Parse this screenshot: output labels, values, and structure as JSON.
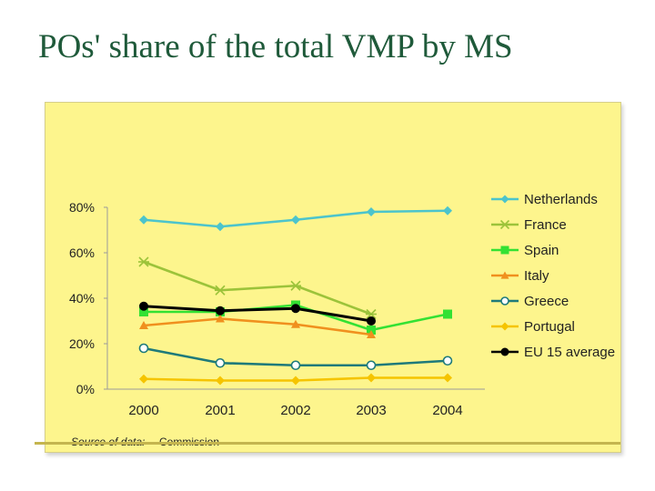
{
  "slide": {
    "title": "POs' share of the total VMP by MS"
  },
  "chart_data": {
    "type": "line",
    "title": "POs' share of the total VMP by MS",
    "categories": [
      "2000",
      "2001",
      "2002",
      "2003",
      "2004"
    ],
    "ylim": [
      0,
      80
    ],
    "yticks": [
      0,
      20,
      40,
      60,
      80
    ],
    "ytick_labels": [
      "0%",
      "20%",
      "40%",
      "60%",
      "80%"
    ],
    "legend_position": "right",
    "series": [
      {
        "name": "Netherlands",
        "color": "#4cc4cc",
        "marker": "diamond",
        "values": [
          74.5,
          71.5,
          74.5,
          78,
          78.5
        ]
      },
      {
        "name": "France",
        "color": "#9cc33a",
        "marker": "star",
        "values": [
          56,
          43.5,
          45.5,
          33,
          null
        ]
      },
      {
        "name": "Spain",
        "color": "#33e133",
        "marker": "square",
        "values": [
          34,
          34,
          37,
          26,
          33
        ]
      },
      {
        "name": "Italy",
        "color": "#f0901e",
        "marker": "triangle",
        "values": [
          28,
          31,
          28.5,
          24,
          null
        ]
      },
      {
        "name": "Greece",
        "color": "#1e7a7a",
        "marker": "circle-open",
        "values": [
          18,
          11.5,
          10.5,
          10.5,
          12.5
        ]
      },
      {
        "name": "Portugal",
        "color": "#f5c400",
        "marker": "diamond",
        "values": [
          4.5,
          3.8,
          3.8,
          5,
          5
        ]
      },
      {
        "name": "EU 15 average",
        "color": "#000000",
        "marker": "circle",
        "values": [
          36.5,
          34.5,
          35.5,
          30,
          null
        ]
      }
    ],
    "source": {
      "label": "Source of data:",
      "value": "Commission"
    }
  }
}
